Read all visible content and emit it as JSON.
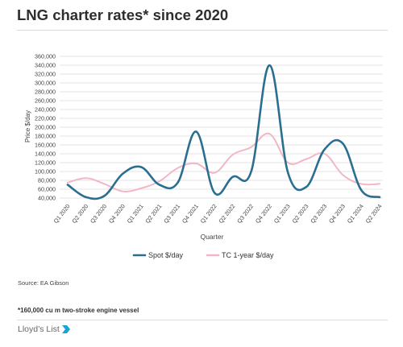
{
  "page": {
    "title": "LNG charter rates* since 2020",
    "source": "Source: EA Gibson",
    "footnote": "*160,000 cu m two-stroke engine vessel",
    "brand": "Lloyd’s List",
    "brand_icon": "lloyds-list-logo-icon"
  },
  "chart_data": {
    "type": "line",
    "title": "LNG charter rates* since 2020",
    "xlabel": "Quarter",
    "ylabel": "Price $/day",
    "ylim": [
      40000,
      360000
    ],
    "yticks": [
      40000,
      60000,
      80000,
      100000,
      120000,
      140000,
      160000,
      180000,
      200000,
      220000,
      240000,
      260000,
      280000,
      300000,
      320000,
      340000,
      360000
    ],
    "ytick_labels": [
      "40,000",
      "60,000",
      "80,000",
      "100,000",
      "120,000",
      "140,000",
      "160,000",
      "180,000",
      "200,000",
      "220,000",
      "240,000",
      "260,000",
      "280,000",
      "300,000",
      "320,000",
      "340,000",
      "360,000"
    ],
    "categories": [
      "Q1 2020",
      "Q2 2020",
      "Q3 2020",
      "Q4 2020",
      "Q1 2021",
      "Q2 2021",
      "Q3 2021",
      "Q4 2021",
      "Q1 2022",
      "Q2 2022",
      "Q3 2022",
      "Q4 2022",
      "Q1 2023",
      "Q2 2023",
      "Q3 2023",
      "Q4 2023",
      "Q1 2024",
      "Q2 2024"
    ],
    "grid": true,
    "legend_position": "bottom",
    "series": [
      {
        "name": "Spot $/day",
        "color": "#2a6e90",
        "values": [
          70000,
          42000,
          45000,
          95000,
          110000,
          70000,
          75000,
          190000,
          52000,
          88000,
          100000,
          340000,
          98000,
          65000,
          150000,
          163000,
          58000,
          42000
        ]
      },
      {
        "name": "TC 1-year $/day",
        "color": "#f2b6c6",
        "values": [
          75000,
          85000,
          72000,
          55000,
          62000,
          78000,
          108000,
          118000,
          97000,
          138000,
          155000,
          185000,
          120000,
          128000,
          140000,
          92000,
          72000,
          72000
        ]
      }
    ]
  }
}
